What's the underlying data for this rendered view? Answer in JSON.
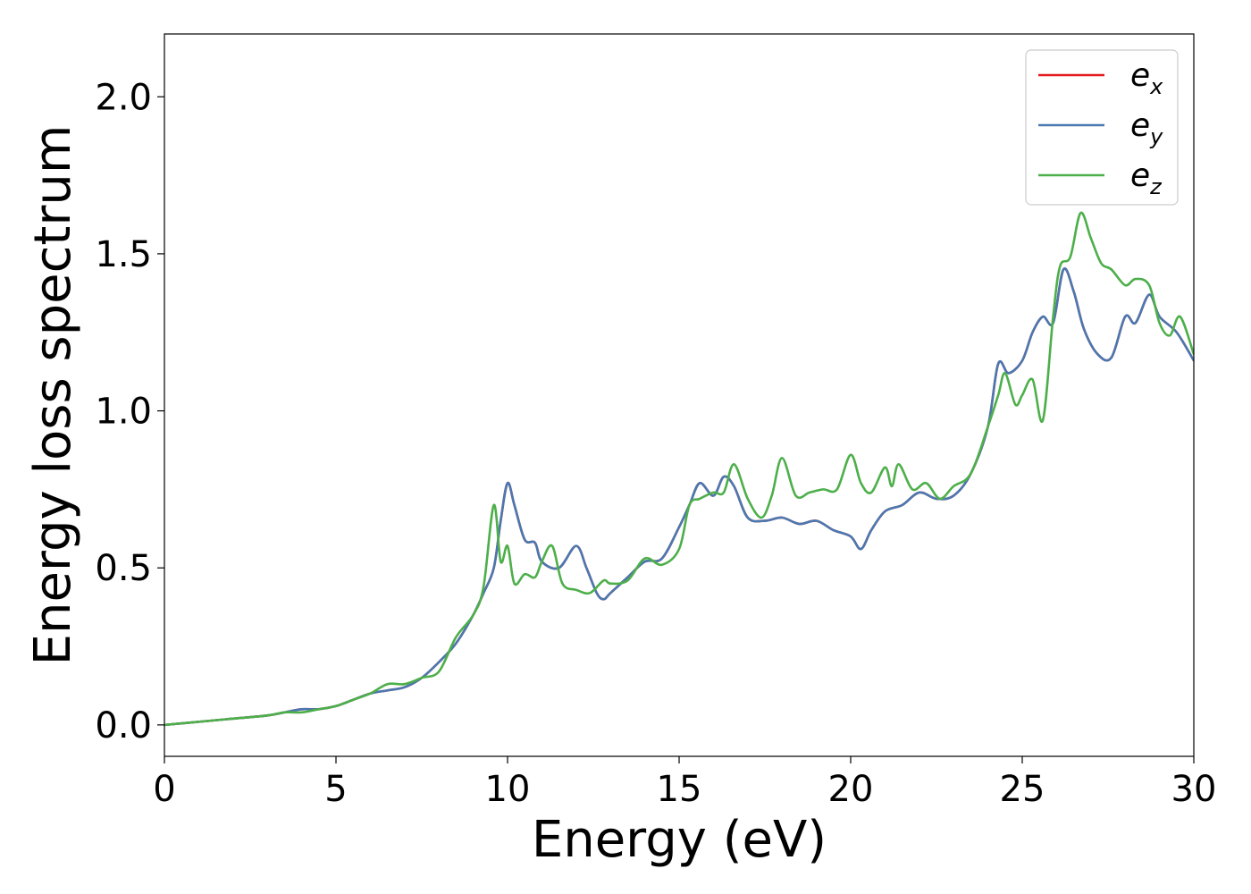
{
  "chart_data": {
    "type": "line",
    "title": "",
    "xlabel": "Energy (eV)",
    "ylabel": "Energy loss spectrum",
    "xlim": [
      0,
      30
    ],
    "ylim": [
      -0.1,
      2.2
    ],
    "xticks": [
      0,
      5,
      10,
      15,
      20,
      25,
      30
    ],
    "xtick_labels": [
      "0",
      "5",
      "10",
      "15",
      "20",
      "25",
      "30"
    ],
    "yticks": [
      0.0,
      0.5,
      1.0,
      1.5,
      2.0
    ],
    "ytick_labels": [
      "0.0",
      "0.5",
      "1.0",
      "1.5",
      "2.0"
    ],
    "grid": false,
    "legend_position": "top-right",
    "series": [
      {
        "name": "e_x",
        "legend_base": "e",
        "legend_sub": "x",
        "color": "#e41a1c",
        "x": [
          0,
          1,
          2,
          3,
          3.5,
          4,
          4.5,
          5,
          5.5,
          6,
          6.5,
          7,
          7.5,
          8,
          8.5,
          9,
          9.3,
          9.6,
          9.8,
          10,
          10.2,
          10.5,
          10.8,
          11,
          11.5,
          12,
          12.3,
          12.6,
          12.8,
          13,
          13.5,
          14,
          14.5,
          15,
          15.3,
          15.6,
          16,
          16.3,
          16.6,
          17,
          17.5,
          18,
          18.5,
          19,
          19.5,
          20,
          20.3,
          20.6,
          21,
          21.5,
          22,
          22.5,
          23,
          23.5,
          24,
          24.3,
          24.6,
          25,
          25.3,
          25.6,
          25.9,
          26.2,
          26.5,
          26.8,
          27.2,
          27.6,
          28,
          28.3,
          28.7,
          29,
          29.5,
          30
        ],
        "y": [
          0,
          0.01,
          0.02,
          0.03,
          0.04,
          0.05,
          0.05,
          0.06,
          0.08,
          0.1,
          0.11,
          0.12,
          0.15,
          0.2,
          0.26,
          0.35,
          0.42,
          0.5,
          0.65,
          0.77,
          0.7,
          0.59,
          0.58,
          0.52,
          0.5,
          0.57,
          0.5,
          0.42,
          0.4,
          0.42,
          0.47,
          0.52,
          0.53,
          0.63,
          0.7,
          0.77,
          0.73,
          0.79,
          0.76,
          0.66,
          0.65,
          0.66,
          0.64,
          0.65,
          0.62,
          0.6,
          0.56,
          0.62,
          0.68,
          0.7,
          0.74,
          0.72,
          0.73,
          0.8,
          0.95,
          1.15,
          1.12,
          1.16,
          1.25,
          1.3,
          1.28,
          1.45,
          1.38,
          1.26,
          1.18,
          1.17,
          1.3,
          1.28,
          1.37,
          1.3,
          1.25,
          1.16
        ]
      },
      {
        "name": "e_y",
        "legend_base": "e",
        "legend_sub": "y",
        "color": "#4a78b0",
        "x": [
          0,
          1,
          2,
          3,
          3.5,
          4,
          4.5,
          5,
          5.5,
          6,
          6.5,
          7,
          7.5,
          8,
          8.5,
          9,
          9.3,
          9.6,
          9.8,
          10,
          10.2,
          10.5,
          10.8,
          11,
          11.5,
          12,
          12.3,
          12.6,
          12.8,
          13,
          13.5,
          14,
          14.5,
          15,
          15.3,
          15.6,
          16,
          16.3,
          16.6,
          17,
          17.5,
          18,
          18.5,
          19,
          19.5,
          20,
          20.3,
          20.6,
          21,
          21.5,
          22,
          22.5,
          23,
          23.5,
          24,
          24.3,
          24.6,
          25,
          25.3,
          25.6,
          25.9,
          26.2,
          26.5,
          26.8,
          27.2,
          27.6,
          28,
          28.3,
          28.7,
          29,
          29.5,
          30
        ],
        "y": [
          0,
          0.01,
          0.02,
          0.03,
          0.04,
          0.05,
          0.05,
          0.06,
          0.08,
          0.1,
          0.11,
          0.12,
          0.15,
          0.2,
          0.26,
          0.35,
          0.42,
          0.5,
          0.65,
          0.77,
          0.7,
          0.59,
          0.58,
          0.52,
          0.5,
          0.57,
          0.5,
          0.42,
          0.4,
          0.42,
          0.47,
          0.52,
          0.53,
          0.63,
          0.7,
          0.77,
          0.73,
          0.79,
          0.76,
          0.66,
          0.65,
          0.66,
          0.64,
          0.65,
          0.62,
          0.6,
          0.56,
          0.62,
          0.68,
          0.7,
          0.74,
          0.72,
          0.73,
          0.8,
          0.95,
          1.15,
          1.12,
          1.16,
          1.25,
          1.3,
          1.28,
          1.45,
          1.38,
          1.26,
          1.18,
          1.17,
          1.3,
          1.28,
          1.37,
          1.3,
          1.25,
          1.16
        ]
      },
      {
        "name": "e_z",
        "legend_base": "e",
        "legend_sub": "z",
        "color": "#4daf4a",
        "x": [
          0,
          1,
          2,
          3,
          3.5,
          4,
          4.5,
          5,
          5.5,
          6,
          6.5,
          7,
          7.5,
          8,
          8.5,
          9,
          9.3,
          9.6,
          9.8,
          10,
          10.2,
          10.5,
          10.8,
          11,
          11.3,
          11.6,
          12,
          12.4,
          12.8,
          13,
          13.5,
          14,
          14.5,
          15,
          15.3,
          15.6,
          16,
          16.3,
          16.6,
          17,
          17.4,
          17.7,
          18,
          18.4,
          18.8,
          19.2,
          19.6,
          20,
          20.3,
          20.6,
          21,
          21.2,
          21.4,
          21.8,
          22.2,
          22.6,
          23,
          23.5,
          24,
          24.3,
          24.5,
          24.8,
          25,
          25.3,
          25.6,
          25.9,
          26.1,
          26.4,
          26.7,
          27,
          27.3,
          27.6,
          28,
          28.3,
          28.7,
          29,
          29.3,
          29.6,
          30
        ],
        "y": [
          0,
          0.01,
          0.02,
          0.03,
          0.04,
          0.04,
          0.05,
          0.06,
          0.08,
          0.1,
          0.13,
          0.13,
          0.15,
          0.17,
          0.28,
          0.35,
          0.44,
          0.7,
          0.52,
          0.57,
          0.45,
          0.48,
          0.47,
          0.52,
          0.57,
          0.45,
          0.43,
          0.42,
          0.46,
          0.45,
          0.46,
          0.53,
          0.51,
          0.56,
          0.7,
          0.72,
          0.74,
          0.74,
          0.83,
          0.72,
          0.66,
          0.73,
          0.85,
          0.73,
          0.74,
          0.75,
          0.75,
          0.86,
          0.77,
          0.74,
          0.82,
          0.76,
          0.83,
          0.75,
          0.77,
          0.72,
          0.76,
          0.8,
          0.95,
          1.05,
          1.12,
          1.02,
          1.05,
          1.1,
          0.97,
          1.3,
          1.46,
          1.49,
          1.63,
          1.55,
          1.47,
          1.45,
          1.4,
          1.42,
          1.4,
          1.28,
          1.24,
          1.3,
          1.18
        ]
      }
    ]
  }
}
